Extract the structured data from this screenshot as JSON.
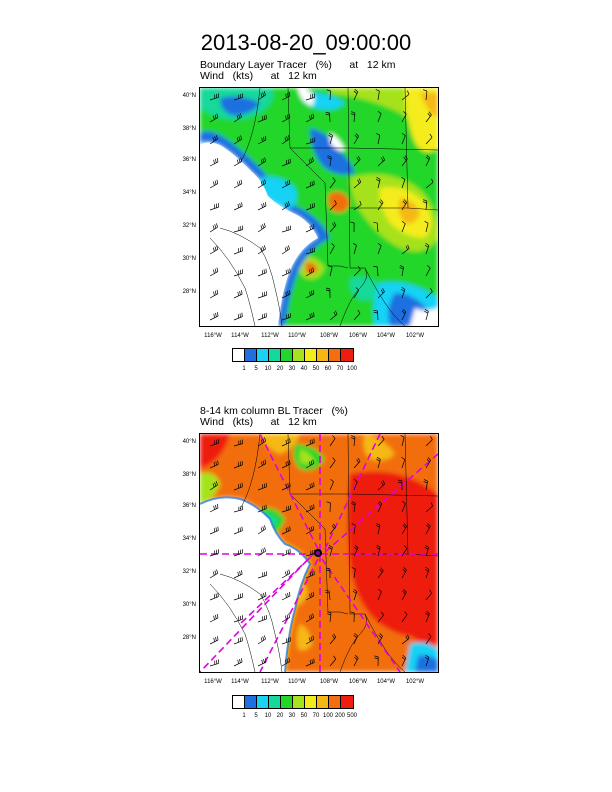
{
  "title": "2013-08-20_09:00:00",
  "panels": [
    {
      "line1": "Boundary Layer Tracer   (%)      at   12 km",
      "line2": "Wind   (kts)      at   12 km",
      "lat_labels": [
        "40°N",
        "38°N",
        "36°N",
        "34°N",
        "32°N",
        "30°N",
        "28°N"
      ],
      "lon_labels": [
        "116°W",
        "114°W",
        "112°W",
        "110°W",
        "108°W",
        "106°W",
        "104°W",
        "102°W"
      ],
      "colorbar": {
        "colors": [
          "#ffffff",
          "#1f6fe0",
          "#19d2f5",
          "#14d99a",
          "#22d62a",
          "#a6e21e",
          "#f4ec1a",
          "#f5b813",
          "#f26e10",
          "#ee1d10"
        ],
        "labels": [
          "1",
          "5",
          "10",
          "20",
          "30",
          "40",
          "50",
          "60",
          "70",
          "100"
        ]
      }
    },
    {
      "line1": "8-14 km column BL Tracer   (%)",
      "line2": "Wind   (kts)      at   12 km",
      "lat_labels": [
        "40°N",
        "38°N",
        "36°N",
        "34°N",
        "32°N",
        "30°N",
        "28°N"
      ],
      "lon_labels": [
        "116°W",
        "114°W",
        "112°W",
        "110°W",
        "108°W",
        "106°W",
        "104°W",
        "102°W"
      ],
      "colorbar": {
        "colors": [
          "#ffffff",
          "#1f6fe0",
          "#19d2f5",
          "#14d99a",
          "#22d62a",
          "#a6e21e",
          "#f4ec1a",
          "#f5b813",
          "#f26e10",
          "#ee1d10"
        ],
        "labels": [
          "1",
          "5",
          "10",
          "20",
          "30",
          "50",
          "70",
          "100",
          "200",
          "500"
        ]
      }
    }
  ]
}
